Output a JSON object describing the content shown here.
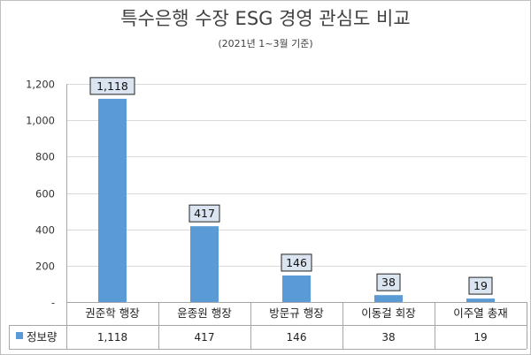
{
  "chart_data": {
    "type": "bar",
    "title": "특수은행 수장 ESG 경영 관심도 비교",
    "subtitle": "(2021년 1~3월 기준)",
    "categories": [
      "권준학 행장",
      "윤종원 행장",
      "방문규 행장",
      "이동걸 회장",
      "이주열 총재"
    ],
    "series": [
      {
        "name": "정보량",
        "values": [
          1118,
          417,
          146,
          38,
          19
        ],
        "color": "#5b9bd5"
      }
    ],
    "data_labels": [
      "1,118",
      "417",
      "146",
      "38",
      "19"
    ],
    "table_values": [
      "1,118",
      "417",
      "146",
      "38",
      "19"
    ],
    "y_ticks": [
      0,
      200,
      400,
      600,
      800,
      1000,
      1200
    ],
    "y_tick_labels": [
      "-",
      "200",
      "400",
      "600",
      "800",
      "1,000",
      "1,200"
    ],
    "ylim": [
      0,
      1200
    ],
    "grid": true,
    "legend": "data-table",
    "data_table": true
  }
}
